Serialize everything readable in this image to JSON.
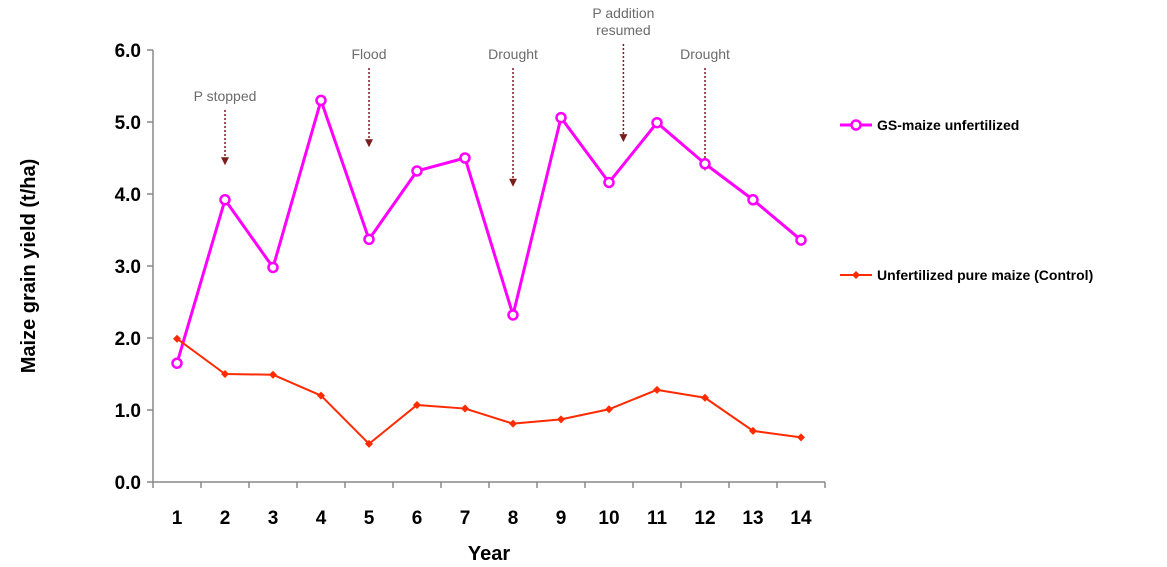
{
  "chart_data": {
    "type": "line",
    "xlabel": "Year",
    "ylabel": "Maize grain yield (t/ha)",
    "categories": [
      "1",
      "2",
      "3",
      "4",
      "5",
      "6",
      "7",
      "8",
      "9",
      "10",
      "11",
      "12",
      "13",
      "14"
    ],
    "y_ticks": [
      "0.0",
      "1.0",
      "2.0",
      "3.0",
      "4.0",
      "5.0",
      "6.0"
    ],
    "ylim": [
      0,
      6
    ],
    "grid": false,
    "legend_position": "right",
    "series": [
      {
        "name": "GS-maize unfertilized",
        "color": "#ff00ff",
        "marker": "circle",
        "values": [
          1.65,
          3.92,
          2.98,
          5.3,
          3.37,
          4.32,
          4.5,
          2.32,
          5.06,
          4.16,
          4.99,
          4.42,
          3.92,
          3.36
        ]
      },
      {
        "name": "Unfertilized pure maize (Control)",
        "color": "#ff2a00",
        "marker": "diamond",
        "values": [
          1.99,
          1.5,
          1.49,
          1.2,
          0.53,
          1.07,
          1.02,
          0.81,
          0.87,
          1.01,
          1.28,
          1.17,
          0.71,
          0.62
        ]
      }
    ],
    "annotations": [
      {
        "lines": [
          "P stopped"
        ],
        "x": 2,
        "arrow_to": 4.4
      },
      {
        "lines": [
          "Flood"
        ],
        "x": 5,
        "arrow_to": 4.65
      },
      {
        "lines": [
          "Drought"
        ],
        "x": 8,
        "arrow_to": 4.1
      },
      {
        "lines": [
          "P addition",
          "resumed"
        ],
        "x": 10.3,
        "arrow_to": 4.72
      },
      {
        "lines": [
          "Drought"
        ],
        "x": 12,
        "arrow_to": 4.32
      }
    ]
  }
}
